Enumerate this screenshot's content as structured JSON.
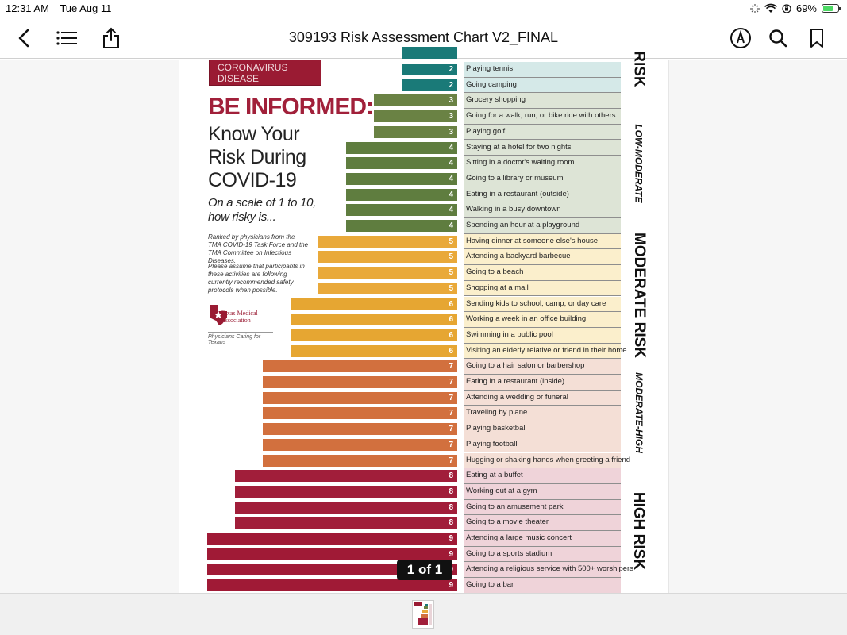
{
  "status": {
    "time": "12:31 AM",
    "date": "Tue Aug 11",
    "battery": "69%",
    "battery_level": 0.69
  },
  "nav": {
    "title": "309193 Risk Assessment Chart V2_FINAL"
  },
  "doc": {
    "banner": "CORONAVIRUS DISEASE",
    "be_informed": "BE INFORMED:",
    "know_risk": "Know Your Risk During COVID-19",
    "scale_q": "On a scale of 1 to 10, how risky is...",
    "ranked": "Ranked by physicians from the TMA COVID-19 Task Force and the TMA Committee on Infectious Diseases.",
    "assume": "Please assume that participants in these activities are following currently recommended safety protocols when possible.",
    "tma_name": "Texas Medical Association",
    "tma_tag": "Physicians Caring for Texans",
    "bands": [
      "RISK",
      "LOW-MODERATE",
      "MODERATE RISK",
      "MODERATE-HIGH",
      "HIGH RISK"
    ],
    "pager": "1 of 1",
    "colors": {
      "2": "#1a7a78",
      "3": "#6a8244",
      "4": "#5f7d3f",
      "5": "#e9a93a",
      "6": "#e6a632",
      "7": "#d2703e",
      "8": "#a11e3a",
      "9": "#a01a36"
    },
    "activities": [
      {
        "score": "2",
        "label": "Playing tennis"
      },
      {
        "score": "2",
        "label": "Going camping"
      },
      {
        "score": "3",
        "label": "Grocery shopping"
      },
      {
        "score": "3",
        "label": "Going for a walk, run, or bike ride with others"
      },
      {
        "score": "3",
        "label": "Playing golf"
      },
      {
        "score": "4",
        "label": "Staying at a hotel for two nights"
      },
      {
        "score": "4",
        "label": "Sitting in a doctor's waiting room"
      },
      {
        "score": "4",
        "label": "Going to a library or museum"
      },
      {
        "score": "4",
        "label": "Eating in a restaurant (outside)"
      },
      {
        "score": "4",
        "label": "Walking in a busy downtown"
      },
      {
        "score": "4",
        "label": "Spending an hour at a playground"
      },
      {
        "score": "5",
        "label": "Having dinner at someone else's house"
      },
      {
        "score": "5",
        "label": "Attending a backyard barbecue"
      },
      {
        "score": "5",
        "label": "Going to a beach"
      },
      {
        "score": "5",
        "label": "Shopping at a mall"
      },
      {
        "score": "6",
        "label": "Sending kids to school, camp, or day care"
      },
      {
        "score": "6",
        "label": "Working a week in an office building"
      },
      {
        "score": "6",
        "label": "Swimming in a public pool"
      },
      {
        "score": "6",
        "label": "Visiting an elderly relative or friend in their home"
      },
      {
        "score": "7",
        "label": "Going to a hair salon or barbershop"
      },
      {
        "score": "7",
        "label": "Eating in a restaurant (inside)"
      },
      {
        "score": "7",
        "label": "Attending a wedding or funeral"
      },
      {
        "score": "7",
        "label": "Traveling by plane"
      },
      {
        "score": "7",
        "label": "Playing basketball"
      },
      {
        "score": "7",
        "label": "Playing football"
      },
      {
        "score": "7",
        "label": "Hugging or shaking hands when greeting a friend"
      },
      {
        "score": "8",
        "label": "Eating at a buffet"
      },
      {
        "score": "8",
        "label": "Working out at a gym"
      },
      {
        "score": "8",
        "label": "Going to an amusement park"
      },
      {
        "score": "8",
        "label": "Going to a movie theater"
      },
      {
        "score": "9",
        "label": "Attending a large music concert"
      },
      {
        "score": "9",
        "label": "Going to a sports stadium"
      },
      {
        "score": "9",
        "label": "Attending a religious service with 500+ worshipers"
      },
      {
        "score": "9",
        "label": "Going to a bar"
      }
    ]
  }
}
